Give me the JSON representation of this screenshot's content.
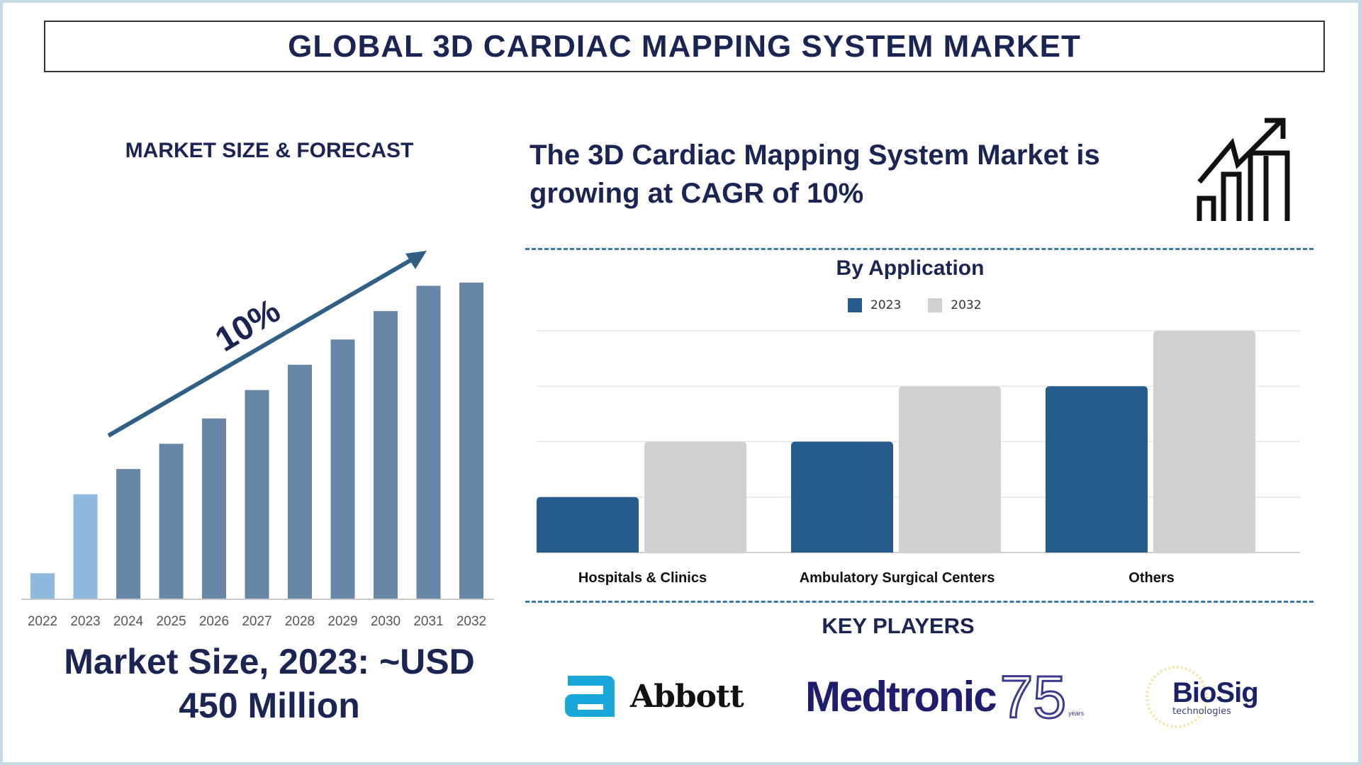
{
  "header": {
    "title": "GLOBAL 3D CARDIAC MAPPING SYSTEM MARKET"
  },
  "left": {
    "section_title": "MARKET SIZE & FORECAST",
    "growth_label": "10%",
    "market_size_line1": "Market Size, 2023: ~USD",
    "market_size_line2": "450 Million"
  },
  "right": {
    "headline_line1": "The 3D Cardiac Mapping System Market is",
    "headline_line2": "growing at CAGR of 10%",
    "growth_icon": "bar-chart-growth-arrow-icon",
    "key_players_title": "KEY PLAYERS",
    "key_players": [
      {
        "name": "Abbott"
      },
      {
        "name": "Medtronic",
        "badge": "75",
        "badge_sub": "years"
      },
      {
        "name": "BioSig",
        "sub": "technologies"
      }
    ]
  },
  "chart_data": [
    {
      "type": "bar",
      "title": "",
      "categories": [
        "2022",
        "2023",
        "2024",
        "2025",
        "2026",
        "2027",
        "2028",
        "2029",
        "2030",
        "2031",
        "2032"
      ],
      "values": [
        8,
        33,
        41,
        49,
        57,
        66,
        74,
        82,
        91,
        99,
        100
      ],
      "highlighted": [
        "2022",
        "2023"
      ],
      "colors": {
        "highlight": "#8fb8df",
        "default": "#6887a8"
      },
      "annotation": "10%",
      "grid": false
    },
    {
      "type": "bar",
      "title": "By Application",
      "categories": [
        "Hospitals & Clinics",
        "Ambulatory Surgical Centers",
        "Others"
      ],
      "series": [
        {
          "name": "2023",
          "values": [
            1,
            2,
            3
          ],
          "color": "#255c8b"
        },
        {
          "name": "2032",
          "values": [
            2,
            3,
            4
          ],
          "color": "#d0d0d0"
        }
      ],
      "ylim": [
        0,
        4
      ],
      "grid": true,
      "legend": "top-center"
    }
  ]
}
